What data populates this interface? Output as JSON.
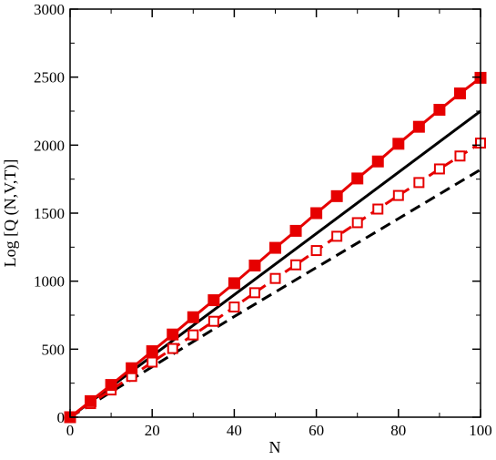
{
  "chart_data": {
    "type": "line",
    "xlabel": "N",
    "ylabel": "Log [Q (N,V,T)]",
    "xlim": [
      0,
      100
    ],
    "ylim": [
      0,
      3000
    ],
    "xticks": [
      0,
      20,
      40,
      60,
      80,
      100
    ],
    "yticks": [
      0,
      500,
      1000,
      1500,
      2000,
      2500,
      3000
    ],
    "grid": false,
    "legend": "none",
    "series": [
      {
        "style": "red-solid-line-filled-squares",
        "color": "#e60000",
        "x": [
          0,
          5,
          10,
          15,
          20,
          25,
          30,
          35,
          40,
          45,
          50,
          55,
          60,
          65,
          70,
          75,
          80,
          85,
          90,
          95,
          100
        ],
        "y": [
          0,
          118,
          237,
          360,
          485,
          608,
          735,
          860,
          985,
          1115,
          1245,
          1370,
          1500,
          1625,
          1755,
          1880,
          2010,
          2135,
          2260,
          2380,
          2495
        ]
      },
      {
        "style": "red-dashed-line-open-squares",
        "color": "#e60000",
        "x": [
          0,
          5,
          10,
          15,
          20,
          25,
          30,
          35,
          40,
          45,
          50,
          55,
          60,
          65,
          70,
          75,
          80,
          85,
          90,
          95,
          100
        ],
        "y": [
          0,
          100,
          200,
          300,
          405,
          505,
          605,
          705,
          810,
          915,
          1020,
          1120,
          1225,
          1330,
          1430,
          1530,
          1630,
          1725,
          1825,
          1920,
          2015
        ]
      },
      {
        "style": "black-solid-line",
        "color": "#000000",
        "x": [
          0,
          100
        ],
        "y": [
          0,
          2250
        ]
      },
      {
        "style": "black-dashed-line",
        "color": "#000000",
        "x": [
          0,
          10,
          20,
          40,
          60,
          80,
          100
        ],
        "y": [
          0,
          185,
          370,
          740,
          1100,
          1460,
          1820
        ]
      }
    ]
  }
}
